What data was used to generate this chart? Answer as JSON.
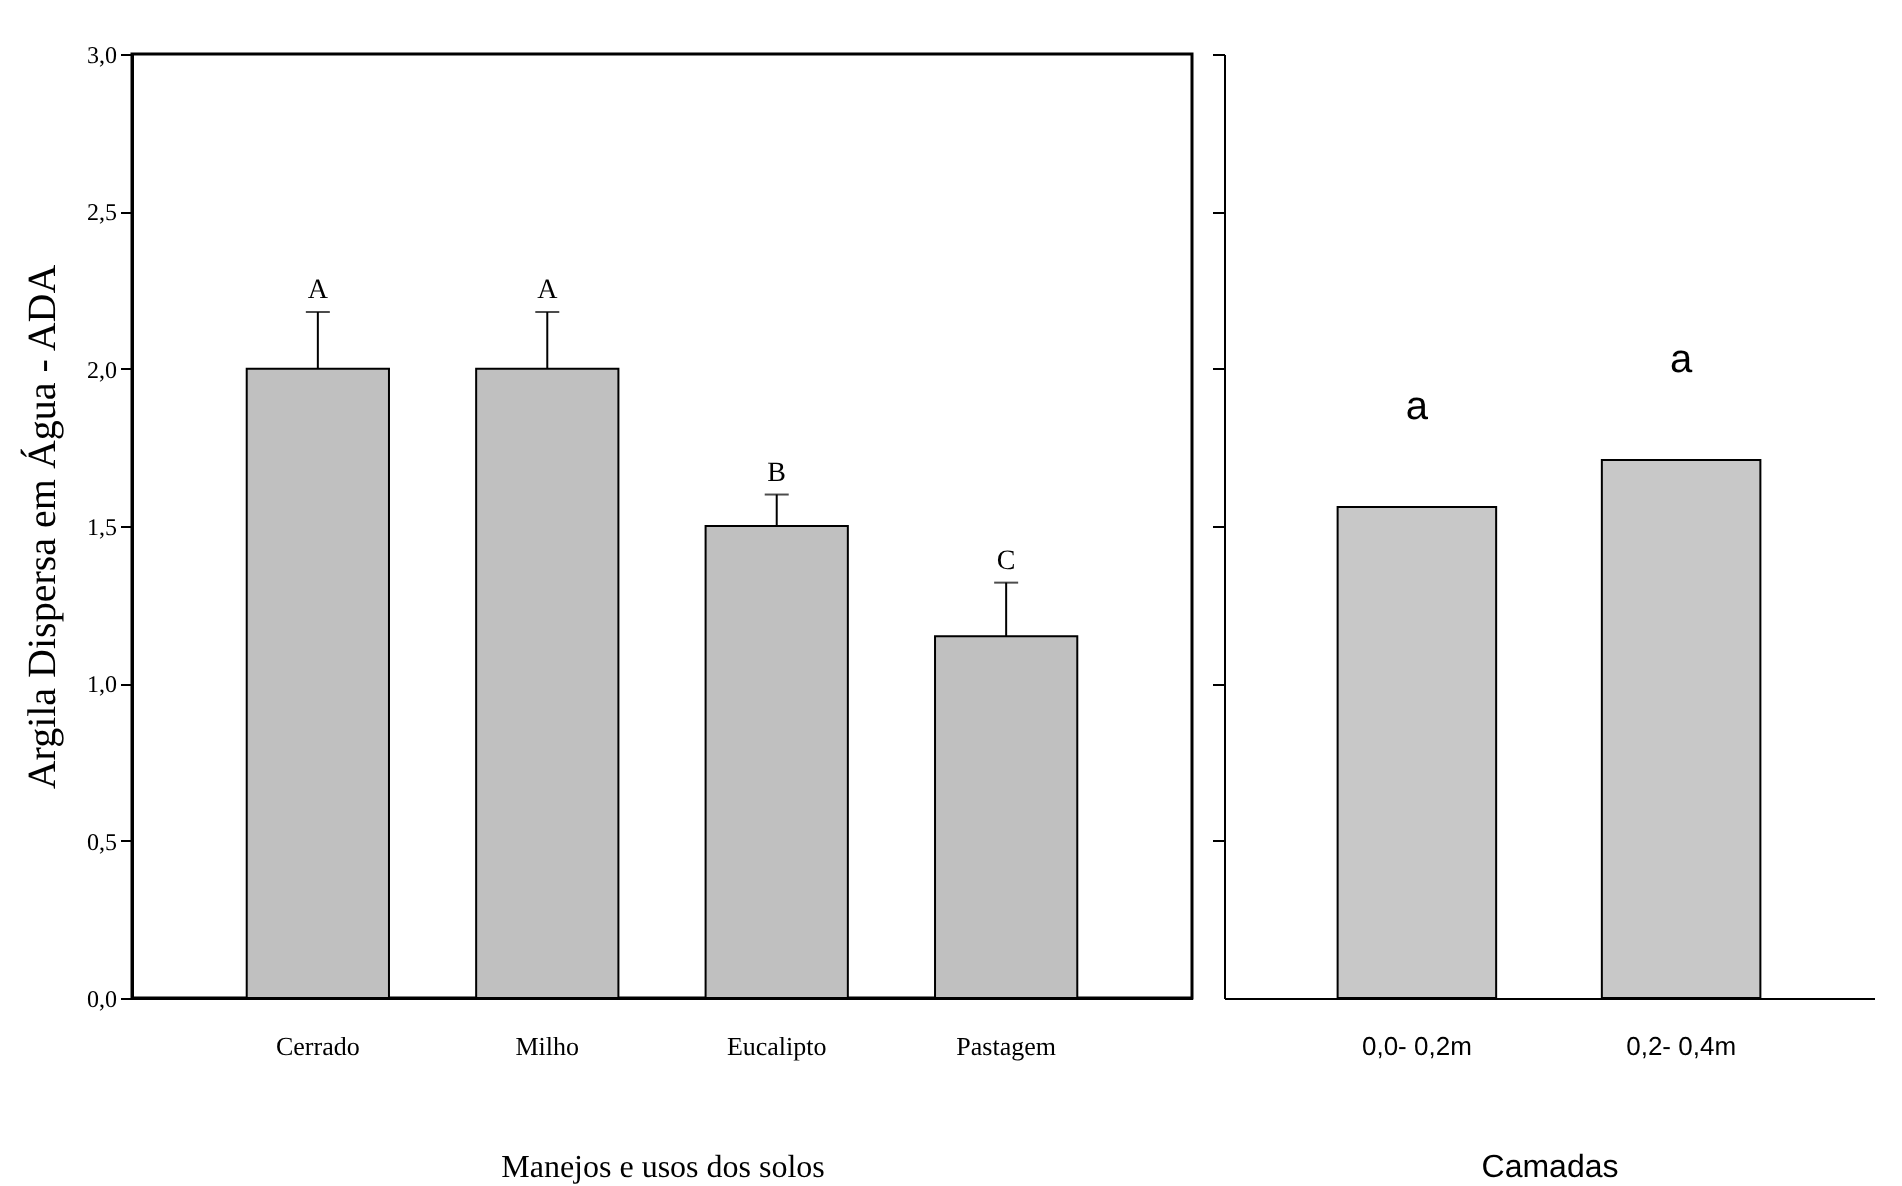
{
  "chart_data": [
    {
      "type": "bar",
      "categories": [
        "Cerrado",
        "Milho",
        "Eucalipto",
        "Pastagem"
      ],
      "values": [
        2.0,
        2.0,
        1.5,
        1.15
      ],
      "color": "#c0c0c0",
      "errors": [
        [
          2.0,
          2.18
        ],
        [
          2.0,
          2.18
        ],
        [
          1.5,
          1.6
        ],
        [
          1.15,
          1.32
        ]
      ],
      "xlabel": "Manejos e usos dos solos",
      "ylabel": "Argila Dispersa em Água - ADA",
      "ylim": [
        0,
        3
      ],
      "yticks": [
        {
          "value": 0,
          "label": "0,0"
        },
        {
          "value": 0.5,
          "label": "0,5"
        },
        {
          "value": 1,
          "label": "1,0"
        },
        {
          "value": 1.5,
          "label": "1,5"
        },
        {
          "value": 2,
          "label": "2,0"
        },
        {
          "value": 2.5,
          "label": "2,5"
        },
        {
          "value": 3,
          "label": "3,0"
        }
      ],
      "annotations": [
        {
          "text": "A",
          "x": "Cerrado",
          "y": 2.18
        },
        {
          "text": "A",
          "x": "Milho",
          "y": 2.18
        },
        {
          "text": "B",
          "x": "Eucalipto",
          "y": 1.6
        },
        {
          "text": "C",
          "x": "Pastagem",
          "y": 1.32
        }
      ]
    },
    {
      "type": "bar",
      "categories": [
        "0,0- 0,2m",
        "0,2- 0,4m"
      ],
      "values": [
        1.56,
        1.71
      ],
      "color": "#c8c8c8",
      "xlabel": "Camadas",
      "ylim": [
        0,
        3
      ],
      "yticks": [
        {
          "value": 0.5,
          "label": null
        },
        {
          "value": 1,
          "label": null
        },
        {
          "value": 1.5,
          "label": null
        },
        {
          "value": 2,
          "label": null
        },
        {
          "value": 2.5,
          "label": null
        },
        {
          "value": 3,
          "label": null
        }
      ],
      "tick_labels": "x",
      "annotations": [
        {
          "text": "a",
          "x": "0,0- 0,2m",
          "y": 1.56
        },
        {
          "text": "a",
          "x": "0,2- 0,4m",
          "y": 1.71
        }
      ]
    }
  ]
}
